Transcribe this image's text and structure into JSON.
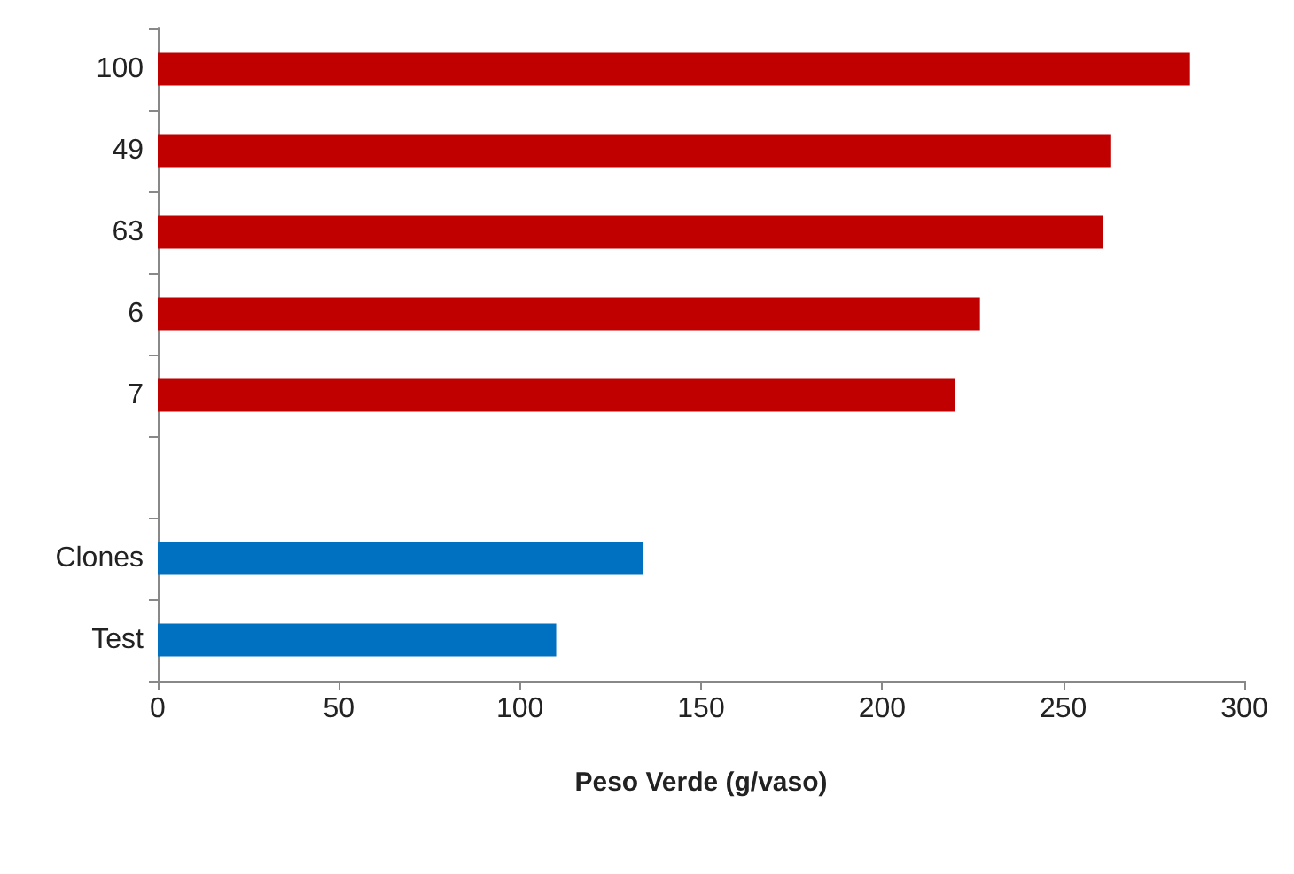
{
  "chart_data": {
    "type": "bar",
    "orientation": "horizontal",
    "xlabel": "Peso Verde (g/vaso)",
    "categories": [
      "100",
      "49",
      "63",
      "6",
      "7",
      null,
      "Clones",
      "Test"
    ],
    "values": [
      285,
      263,
      261,
      227,
      220,
      null,
      134,
      110
    ],
    "colors": [
      "#c00000",
      "#c00000",
      "#c00000",
      "#c00000",
      "#c00000",
      "#c00000",
      "#0070c0",
      "#0070c0"
    ],
    "xlim": [
      0,
      300
    ],
    "xticks": [
      0,
      50,
      100,
      150,
      200,
      250,
      300
    ],
    "grid": false
  }
}
